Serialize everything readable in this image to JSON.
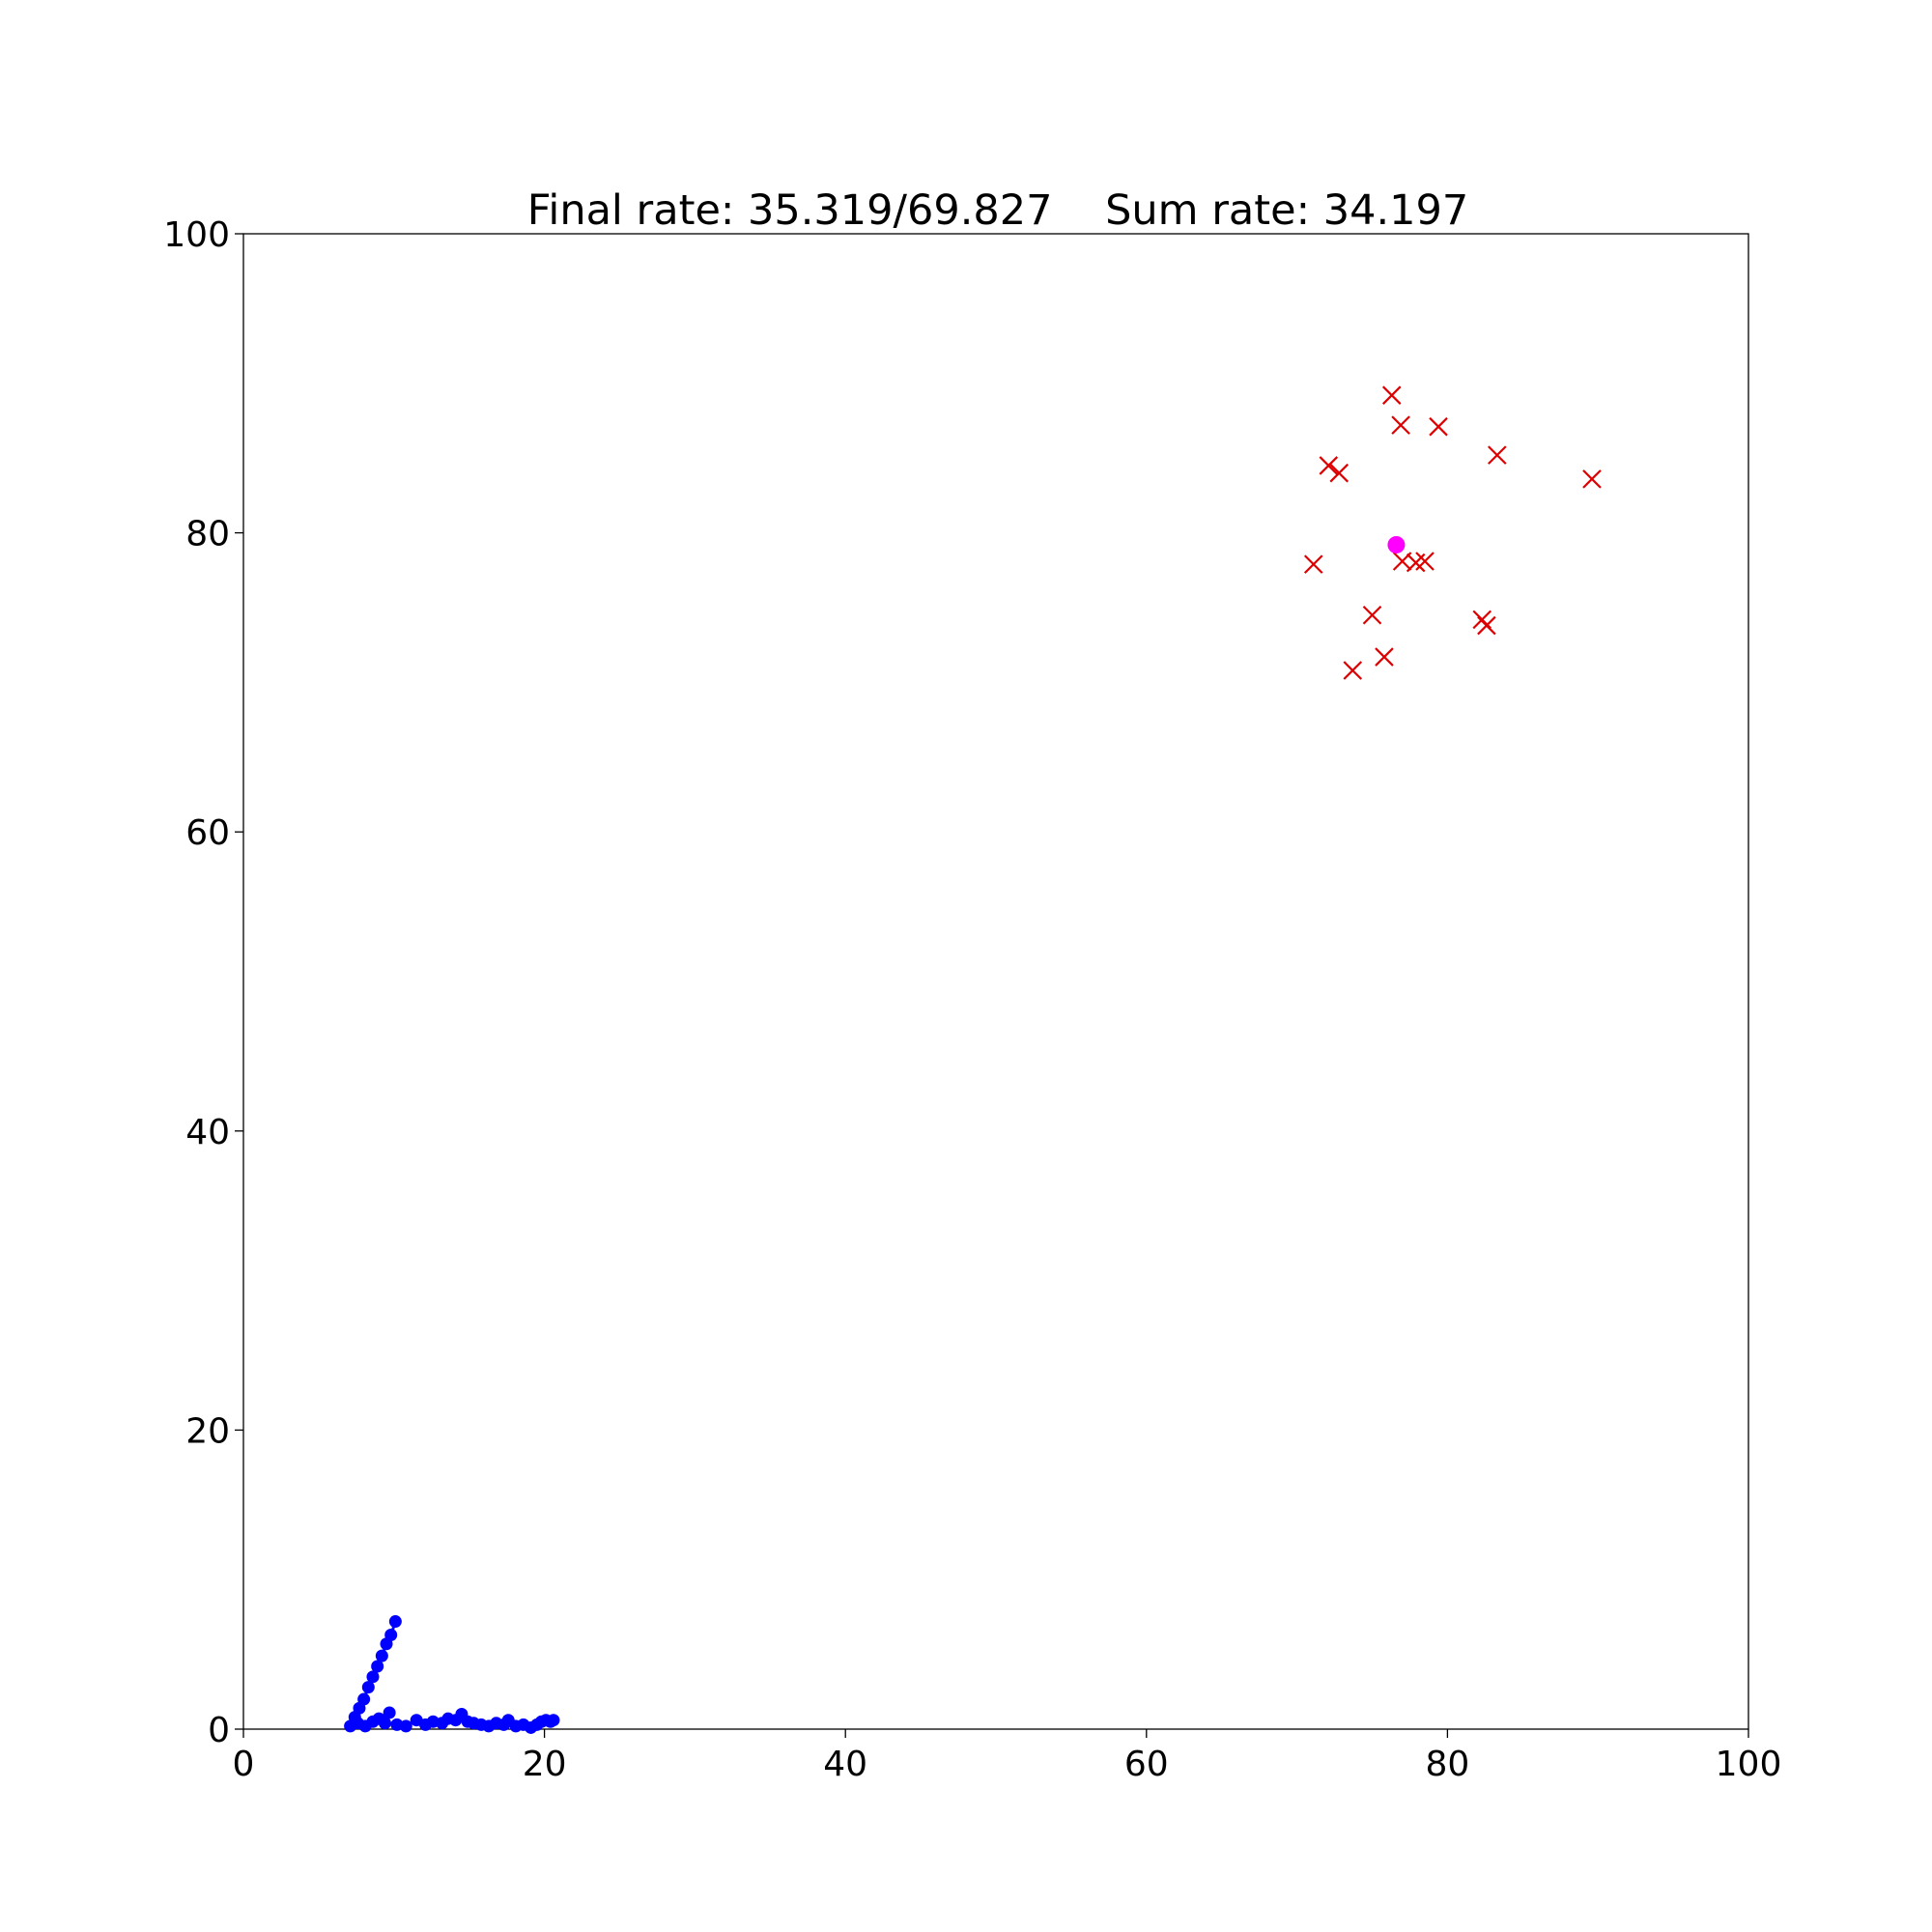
{
  "chart_data": {
    "type": "scatter",
    "title": "Final rate: 35.319/69.827    Sum rate: 34.197",
    "xlim": [
      0,
      100
    ],
    "ylim": [
      0,
      100
    ],
    "x_ticks": [
      "0",
      "20",
      "40",
      "60",
      "80",
      "100"
    ],
    "y_ticks": [
      "0",
      "20",
      "40",
      "60",
      "80",
      "100"
    ],
    "grid": false,
    "legend": "none",
    "series": [
      {
        "marker": "x",
        "color": "#dd0000",
        "points": [
          [
            76.3,
            89.2
          ],
          [
            76.9,
            87.2
          ],
          [
            79.4,
            87.1
          ],
          [
            83.3,
            85.2
          ],
          [
            89.6,
            83.6
          ],
          [
            72.1,
            84.5
          ],
          [
            72.8,
            84.0
          ],
          [
            71.1,
            77.9
          ],
          [
            77.0,
            78.1
          ],
          [
            77.9,
            78.0
          ],
          [
            78.5,
            78.1
          ],
          [
            75.0,
            74.5
          ],
          [
            82.3,
            74.2
          ],
          [
            82.6,
            73.8
          ],
          [
            75.8,
            71.7
          ],
          [
            73.7,
            70.8
          ]
        ]
      },
      {
        "marker": "o",
        "color": "#ff00ff",
        "points": [
          [
            76.6,
            79.2
          ]
        ]
      },
      {
        "marker": "o-",
        "color": "#0000ff",
        "points": [
          [
            10.1,
            7.2
          ],
          [
            9.8,
            6.3
          ],
          [
            9.5,
            5.7
          ],
          [
            9.2,
            4.9
          ],
          [
            8.9,
            4.2
          ],
          [
            8.6,
            3.5
          ],
          [
            8.3,
            2.8
          ],
          [
            8.0,
            2.0
          ],
          [
            7.7,
            1.4
          ],
          [
            7.4,
            0.8
          ],
          [
            7.1,
            0.2
          ],
          [
            7.6,
            0.4
          ],
          [
            8.1,
            0.2
          ],
          [
            8.6,
            0.5
          ],
          [
            9.0,
            0.7
          ],
          [
            9.3,
            0.6
          ],
          [
            9.7,
            1.1
          ],
          [
            9.4,
            0.4
          ],
          [
            10.2,
            0.3
          ],
          [
            10.8,
            0.2
          ],
          [
            11.5,
            0.6
          ],
          [
            12.1,
            0.3
          ],
          [
            12.6,
            0.5
          ],
          [
            13.2,
            0.4
          ],
          [
            13.6,
            0.7
          ],
          [
            14.1,
            0.6
          ],
          [
            14.5,
            1.0
          ],
          [
            14.9,
            0.5
          ],
          [
            15.3,
            0.4
          ],
          [
            15.8,
            0.3
          ],
          [
            16.3,
            0.2
          ],
          [
            16.8,
            0.4
          ],
          [
            17.3,
            0.3
          ],
          [
            17.6,
            0.6
          ],
          [
            18.1,
            0.2
          ],
          [
            18.6,
            0.3
          ],
          [
            19.1,
            0.1
          ],
          [
            19.5,
            0.3
          ],
          [
            19.8,
            0.5
          ],
          [
            20.1,
            0.6
          ],
          [
            20.4,
            0.5
          ],
          [
            20.6,
            0.6
          ]
        ]
      }
    ]
  }
}
